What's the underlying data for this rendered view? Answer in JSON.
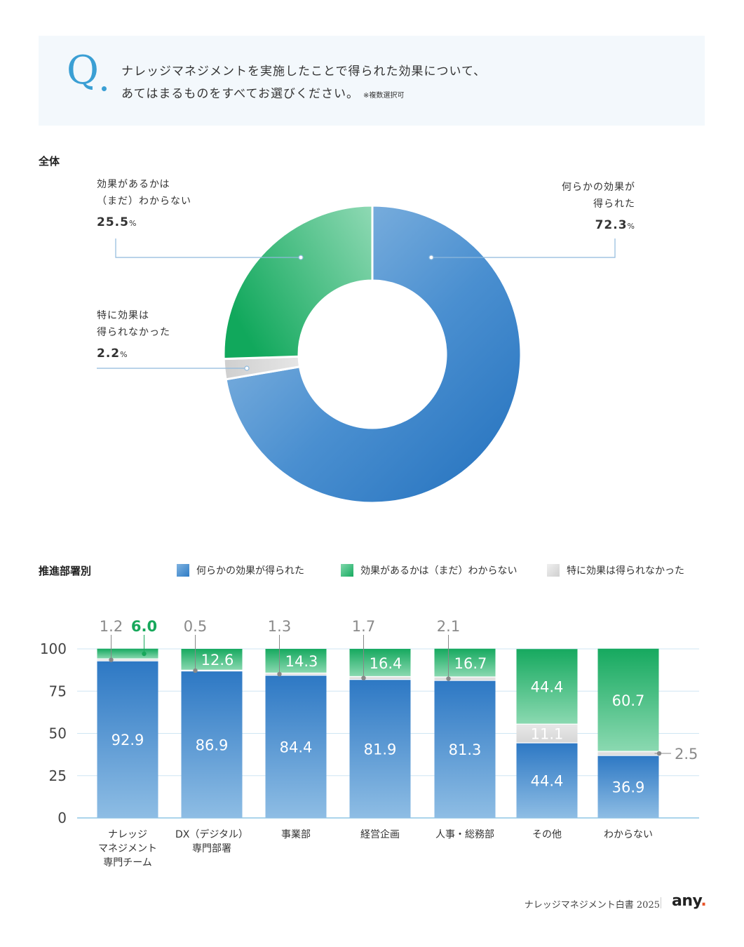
{
  "question": {
    "mark": "Q",
    "line1": "ナレッジマネジメントを実施したことで得られた効果について、",
    "line2": "あてはまるものをすべてお選びください。",
    "note": "※複数選択可"
  },
  "overall": {
    "section_title": "全体",
    "labels": [
      {
        "line1": "効果があるかは",
        "line2": "（まだ）わからない",
        "value": "25.5",
        "unit": "%"
      },
      {
        "line1": "何らかの効果が",
        "line2": "得られた",
        "value": "72.3",
        "unit": "%"
      },
      {
        "line1": "特に効果は",
        "line2": "得られなかった",
        "value": "2.2",
        "unit": "%"
      }
    ]
  },
  "by_dept": {
    "section_title": "推進部署別",
    "legend": [
      {
        "label": "何らかの効果が得られた",
        "color": "#3b86cc"
      },
      {
        "label": "効果があるかは（まだ）わからない",
        "color": "#3cbf80"
      },
      {
        "label": "特に効果は得られなかった",
        "color": "#d9d9d9"
      }
    ],
    "categories": [
      [
        "ナレッジ",
        "マネジメント",
        "専門チーム"
      ],
      [
        "DX（デジタル）",
        "専門部署"
      ],
      [
        "事業部"
      ],
      [
        "経営企画"
      ],
      [
        "人事・総務部"
      ],
      [
        "その他"
      ],
      [
        "わからない"
      ]
    ]
  },
  "chart_data": [
    {
      "type": "pie",
      "donut": true,
      "slices": [
        {
          "name": "何らかの効果が得られた",
          "value": 72.3,
          "color": "#3b86cc"
        },
        {
          "name": "特に効果は得られなかった",
          "value": 2.2,
          "color": "#d9d9d9"
        },
        {
          "name": "効果があるかは（まだ）わからない",
          "value": 25.5,
          "color": "#2fb36f"
        }
      ]
    },
    {
      "type": "bar",
      "stacked": true,
      "categories": [
        "ナレッジマネジメント専門チーム",
        "DX（デジタル）専門部署",
        "事業部",
        "経営企画",
        "人事・総務部",
        "その他",
        "わからない"
      ],
      "series": [
        {
          "name": "何らかの効果が得られた",
          "values": [
            92.9,
            86.9,
            84.4,
            81.9,
            81.3,
            44.4,
            36.9
          ]
        },
        {
          "name": "特に効果は得られなかった",
          "values": [
            1.2,
            0.5,
            1.3,
            1.7,
            2.1,
            11.1,
            2.5
          ]
        },
        {
          "name": "効果があるかは（まだ）わからない",
          "values": [
            6.0,
            12.6,
            14.3,
            16.4,
            16.7,
            44.4,
            60.7
          ]
        }
      ],
      "yticks": [
        0,
        25,
        50,
        75,
        100
      ],
      "ylim": [
        0,
        100
      ],
      "grid": true,
      "legend_position": "top"
    }
  ],
  "footer": {
    "text": "ナレッジマネジメント白書 2025",
    "logo": "any",
    "logo_dot": "."
  }
}
